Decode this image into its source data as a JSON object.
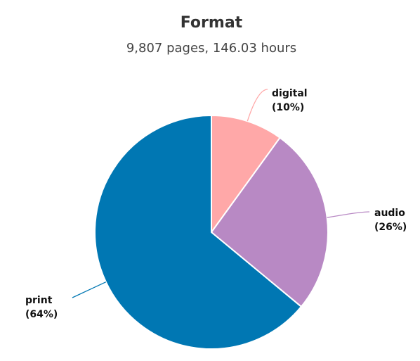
{
  "chart_data": {
    "type": "pie",
    "title": "Format",
    "subtitle": "9,807 pages, 146.03 hours",
    "slices": [
      {
        "label": "digital",
        "pct_label": "(10%)",
        "value": 10,
        "color": "#FFA8A8"
      },
      {
        "label": "audio",
        "pct_label": "(26%)",
        "value": 26,
        "color": "#B889C4"
      },
      {
        "label": "print",
        "pct_label": "(64%)",
        "value": 64,
        "color": "#0077B3"
      }
    ],
    "start_angle_deg": 0,
    "direction": "clockwise",
    "slice_border_color": "#ffffff"
  }
}
